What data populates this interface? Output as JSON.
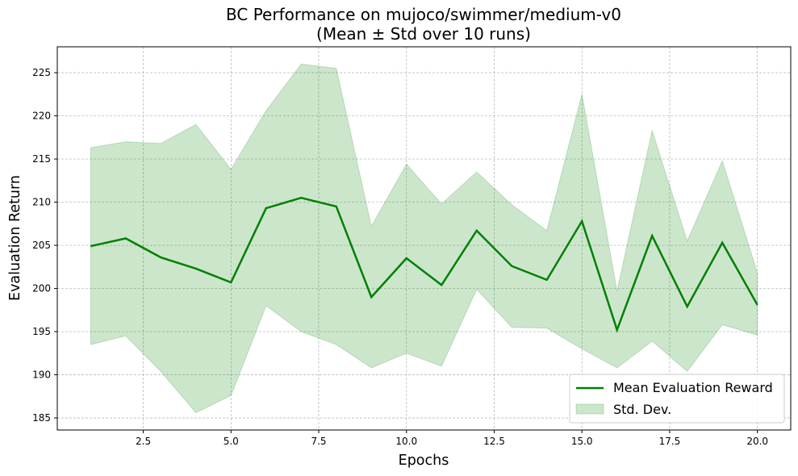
{
  "chart_data": {
    "type": "line",
    "title": "BC Performance on mujoco/swimmer/medium-v0",
    "subtitle": "(Mean ± Std over 10 runs)",
    "xlabel": "Epochs",
    "ylabel": "Evaluation Return",
    "xlim": [
      0.05,
      20.95
    ],
    "ylim": [
      183.6,
      228.0
    ],
    "xticks": [
      2.5,
      5.0,
      7.5,
      10.0,
      12.5,
      15.0,
      17.5,
      20.0
    ],
    "xtick_labels": [
      "2.5",
      "5.0",
      "7.5",
      "10.0",
      "12.5",
      "15.0",
      "17.5",
      "20.0"
    ],
    "yticks": [
      185,
      190,
      195,
      200,
      205,
      210,
      215,
      220,
      225
    ],
    "ytick_labels": [
      "185",
      "190",
      "195",
      "200",
      "205",
      "210",
      "215",
      "220",
      "225"
    ],
    "grid": true,
    "legend_position": "bottom-right",
    "x": [
      1,
      2,
      3,
      4,
      5,
      6,
      7,
      8,
      9,
      10,
      11,
      12,
      13,
      14,
      15,
      16,
      17,
      18,
      19,
      20
    ],
    "series": [
      {
        "name": "Mean Evaluation Reward",
        "kind": "line",
        "color": "#008000",
        "values": [
          204.9,
          205.8,
          203.6,
          202.3,
          200.7,
          209.3,
          210.5,
          209.5,
          199.0,
          203.5,
          200.4,
          206.7,
          202.6,
          201.0,
          207.8,
          195.2,
          206.1,
          197.9,
          205.3,
          198.1
        ]
      },
      {
        "name": "Std. Dev.",
        "kind": "band",
        "color": "#008000",
        "upper": [
          216.3,
          217.0,
          216.8,
          219.0,
          213.8,
          220.6,
          226.0,
          225.5,
          207.2,
          214.4,
          209.8,
          213.5,
          209.7,
          206.7,
          222.5,
          199.7,
          218.3,
          205.5,
          214.8,
          201.8
        ],
        "lower": [
          193.5,
          194.5,
          190.4,
          185.6,
          187.6,
          198.0,
          195.0,
          193.5,
          190.8,
          192.5,
          191.0,
          199.9,
          195.5,
          195.4,
          193.0,
          190.8,
          193.9,
          190.4,
          195.8,
          194.6
        ]
      }
    ]
  }
}
